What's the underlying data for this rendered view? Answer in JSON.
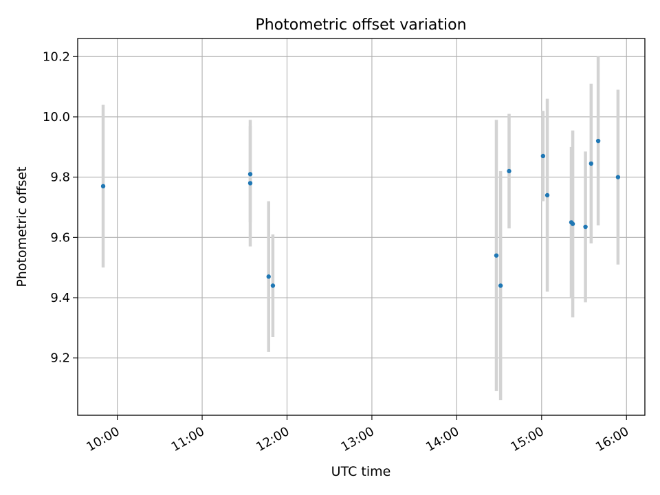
{
  "chart_data": {
    "type": "scatter",
    "title": "Photometric offset variation",
    "xlabel": "UTC time",
    "ylabel": "Photometric offset",
    "x_unit": "hours (UTC)",
    "xlim": [
      "09:32",
      "16:13"
    ],
    "ylim": [
      9.01,
      10.26
    ],
    "x_ticks": [
      "10:00",
      "11:00",
      "12:00",
      "13:00",
      "14:00",
      "15:00",
      "16:00"
    ],
    "y_ticks": [
      9.2,
      9.4,
      9.6,
      9.8,
      10.0,
      10.2
    ],
    "grid": true,
    "legend": "none",
    "colors": {
      "marker": "#1f77b4",
      "errorbar": "#d3d3d3"
    },
    "points": [
      {
        "x": "09:50",
        "y": 9.77,
        "err": 0.27
      },
      {
        "x": "11:34",
        "y": 9.81,
        "err": 0.16
      },
      {
        "x": "11:34",
        "y": 9.78,
        "err": 0.21
      },
      {
        "x": "11:47",
        "y": 9.47,
        "err": 0.25
      },
      {
        "x": "11:50",
        "y": 9.44,
        "err": 0.17
      },
      {
        "x": "14:28",
        "y": 9.54,
        "err": 0.45
      },
      {
        "x": "14:31",
        "y": 9.44,
        "err": 0.38
      },
      {
        "x": "14:37",
        "y": 9.82,
        "err": 0.19
      },
      {
        "x": "15:01",
        "y": 9.87,
        "err": 0.15
      },
      {
        "x": "15:04",
        "y": 9.74,
        "err": 0.32
      },
      {
        "x": "15:21",
        "y": 9.65,
        "err": 0.25
      },
      {
        "x": "15:22",
        "y": 9.645,
        "err": 0.31
      },
      {
        "x": "15:31",
        "y": 9.635,
        "err": 0.25
      },
      {
        "x": "15:35",
        "y": 9.845,
        "err": 0.265
      },
      {
        "x": "15:40",
        "y": 9.92,
        "err": 0.28
      },
      {
        "x": "15:54",
        "y": 9.8,
        "err": 0.29
      }
    ]
  }
}
